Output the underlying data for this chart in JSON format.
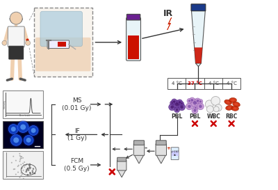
{
  "bg_color": "#ffffff",
  "red_color": "#cc0000",
  "temp_labels": [
    "4 °C",
    "37 °C",
    "4 °C",
    "4 °C"
  ],
  "cell_labels": [
    "PBL",
    "PBL",
    "WBC",
    "RBC"
  ],
  "method_labels": [
    "MS\n(0.01 Gy)",
    "IF\n(1 Gy)",
    "FCM\n(0.5 Gy)"
  ],
  "ir_label": "IR",
  "purple_dark": "#7040a0",
  "purple_light": "#c090d0",
  "rbc_color": "#cc2200",
  "wbc_color": "#d8d8d8",
  "blood_red": "#cc1100",
  "tube_cap_purple": "#6a2090",
  "tube_cap_blue": "#1a3a8a",
  "tube_body": "#e8f4f8",
  "epp_body": "#e0e0e0",
  "epp_cap": "#b0b0b0"
}
